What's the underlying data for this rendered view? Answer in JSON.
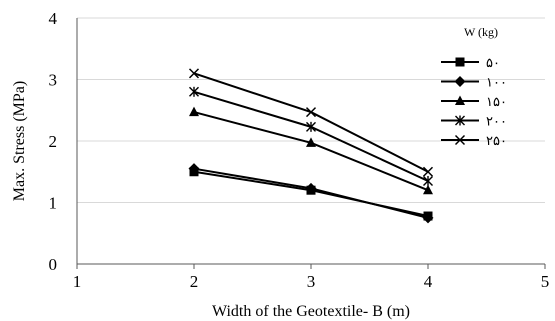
{
  "chart_data": {
    "type": "line",
    "title": "",
    "xlabel": "Width of the Geotextile- B (m)",
    "ylabel": "Max. Stress (MPa)",
    "xlim": [
      1,
      5
    ],
    "ylim": [
      0,
      4
    ],
    "x_ticks": [
      "1",
      "2",
      "3",
      "4",
      "5"
    ],
    "y_ticks": [
      "0",
      "1",
      "2",
      "3",
      "4"
    ],
    "grid": "horizontal",
    "legend_title": "W (kg)",
    "legend_position": "right",
    "x": [
      2,
      3,
      4
    ],
    "series": [
      {
        "name": "۵۰",
        "marker": "square",
        "values": [
          1.5,
          1.2,
          0.78
        ]
      },
      {
        "name": "۱۰۰",
        "marker": "diamond",
        "values": [
          1.55,
          1.23,
          0.75
        ]
      },
      {
        "name": "۱۵۰",
        "marker": "triangle",
        "values": [
          2.47,
          1.97,
          1.2
        ]
      },
      {
        "name": "۲۰۰",
        "marker": "asterisk",
        "values": [
          2.8,
          2.23,
          1.35
        ]
      },
      {
        "name": "۲۵۰",
        "marker": "x",
        "values": [
          3.1,
          2.47,
          1.5
        ]
      }
    ]
  }
}
